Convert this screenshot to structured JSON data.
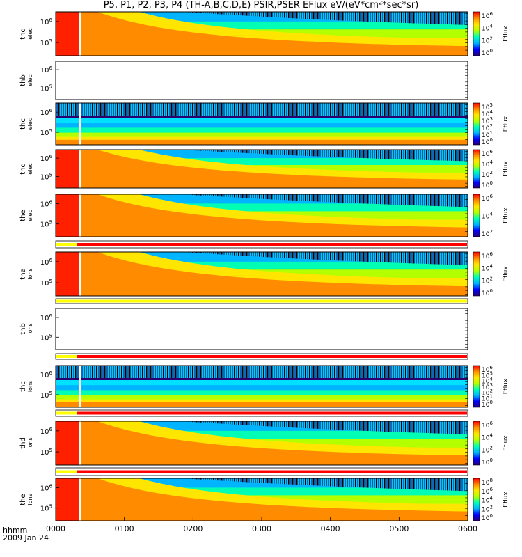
{
  "figure": {
    "title": "P5, P1, P2, P3, P4 (TH-A,B,C,D,E) PSIR,PSER EFlux eV/(eV*cm²*sec*sr)",
    "time_axis": {
      "label_line1": "hhmm",
      "label_line2": "2009 Jan 24",
      "ticks": [
        "0000",
        "0100",
        "0200",
        "0300",
        "0400",
        "0500",
        "0600"
      ]
    },
    "colors": {
      "flag_yellow": "#ffff00",
      "flag_red": "#ff0000",
      "colormap": [
        "#2a0070",
        "#0000ff",
        "#00b4ff",
        "#00ffb4",
        "#b4ff00",
        "#ffe600",
        "#ff8c00",
        "#ff0000"
      ]
    }
  },
  "chart_data": [
    {
      "type": "heatmap",
      "probe": "thd",
      "species": "elec",
      "ylabel": "thd elec",
      "yticks": [
        "10^6",
        "10^5"
      ],
      "colorbar": {
        "label": "Eflux",
        "ticks": [
          "10^6",
          "10^4",
          "10^2",
          "10^0"
        ]
      },
      "empty": false
    },
    {
      "type": "heatmap",
      "probe": "thb",
      "species": "elec",
      "ylabel": "thb elec",
      "yticks": [
        "10^6",
        "10^5"
      ],
      "colorbar": null,
      "empty": true
    },
    {
      "type": "heatmap",
      "probe": "thc",
      "species": "elec",
      "ylabel": "thc elec",
      "yticks": [
        "10^6",
        "10^5"
      ],
      "colorbar": {
        "label": "Eflux",
        "ticks": [
          "10^5",
          "10^4",
          "10^3",
          "10^2",
          "10^1",
          "10^0"
        ]
      },
      "empty": false
    },
    {
      "type": "heatmap",
      "probe": "thd",
      "species": "elec",
      "ylabel": "thd elec",
      "yticks": [
        "10^6",
        "10^5"
      ],
      "colorbar": {
        "label": "Eflux",
        "ticks": [
          "10^6",
          "10^4",
          "10^2",
          "10^0"
        ]
      },
      "empty": false
    },
    {
      "type": "heatmap",
      "probe": "the",
      "species": "elec",
      "ylabel": "the elec",
      "yticks": [
        "10^6",
        "10^5"
      ],
      "colorbar": {
        "label": "Eflux",
        "ticks": [
          "10^6",
          "10^4",
          "10^2"
        ]
      },
      "empty": false
    },
    {
      "type": "heatmap",
      "probe": "tha",
      "species": "ions",
      "ylabel": "tha ions",
      "yticks": [
        "10^6",
        "10^5"
      ],
      "colorbar": {
        "label": "Eflux",
        "ticks": [
          "10^6",
          "10^4",
          "10^2",
          "10^0"
        ]
      },
      "empty": false
    },
    {
      "type": "heatmap",
      "probe": "thb",
      "species": "ions",
      "ylabel": "thb ions",
      "yticks": [
        "10^6",
        "10^5"
      ],
      "colorbar": null,
      "empty": true
    },
    {
      "type": "heatmap",
      "probe": "thc",
      "species": "ions",
      "ylabel": "thc ions",
      "yticks": [
        "10^6",
        "10^5"
      ],
      "colorbar": {
        "label": "Eflux",
        "ticks": [
          "10^6",
          "10^5",
          "10^4",
          "10^3",
          "10^2",
          "10^1",
          "10^0"
        ]
      },
      "empty": false
    },
    {
      "type": "heatmap",
      "probe": "thd",
      "species": "ions",
      "ylabel": "thd ions",
      "yticks": [
        "10^6",
        "10^5"
      ],
      "colorbar": {
        "label": "Eflux",
        "ticks": [
          "10^6",
          "10^4",
          "10^2",
          "10^0"
        ]
      },
      "empty": false
    },
    {
      "type": "heatmap",
      "probe": "the",
      "species": "ions",
      "ylabel": "the ions",
      "yticks": [
        "10^6",
        "10^5"
      ],
      "colorbar": {
        "label": "Eflux",
        "ticks": [
          "10^8",
          "10^6",
          "10^4",
          "10^2",
          "10^0"
        ]
      },
      "empty": false
    }
  ]
}
